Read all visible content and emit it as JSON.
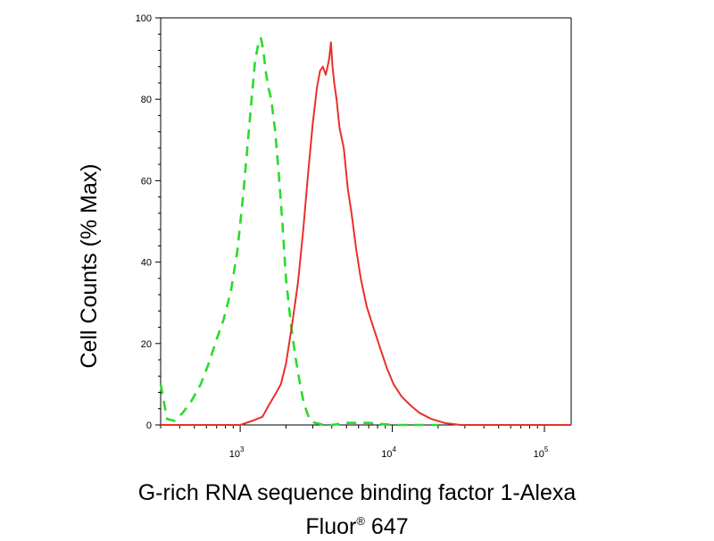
{
  "chart_data": {
    "type": "line",
    "xlabel_line1": "G-rich RNA sequence binding factor 1-Alexa",
    "xlabel_line2_base": "Fluor",
    "xlabel_line2_sup": "®",
    "xlabel_line2_rest": " 647",
    "ylabel": "Cell Counts (% Max)",
    "x_scale": "log",
    "xlim": [
      300,
      150000
    ],
    "ylim": [
      0,
      100
    ],
    "ytick_labels": [
      "0",
      "20",
      "40",
      "60",
      "80",
      "100"
    ],
    "ytick_values": [
      0,
      20,
      40,
      60,
      80,
      100
    ],
    "xtick_values": [
      1000,
      10000,
      100000
    ],
    "xtick_labels": [
      {
        "base": "10",
        "exp": "3"
      },
      {
        "base": "10",
        "exp": "4"
      },
      {
        "base": "10",
        "exp": "5"
      }
    ],
    "grid": false,
    "series": [
      {
        "color": "#2adb2a",
        "style": "dashed",
        "x": [
          300,
          330,
          370,
          420,
          480,
          550,
          620,
          700,
          780,
          870,
          960,
          1050,
          1150,
          1250,
          1320,
          1370,
          1420,
          1470,
          1530,
          1600,
          1700,
          1800,
          1900,
          2000,
          2150,
          2300,
          2450,
          2600,
          2750,
          2900,
          3100,
          3300,
          3600,
          4000,
          5000,
          7000,
          10000,
          20000
        ],
        "y": [
          10,
          1.5,
          1,
          3,
          6,
          10,
          15,
          21,
          26,
          33,
          43,
          57,
          74,
          89,
          94,
          95,
          92,
          87,
          83,
          80,
          72,
          61,
          49,
          36,
          25,
          17,
          11,
          6,
          3,
          1,
          0.5,
          0.3,
          0,
          0,
          0.5,
          0.5,
          0,
          0
        ]
      },
      {
        "color": "#e8302a",
        "style": "solid",
        "x": [
          300,
          1000,
          1200,
          1400,
          1550,
          1700,
          1850,
          2000,
          2200,
          2400,
          2600,
          2800,
          3000,
          3200,
          3350,
          3500,
          3650,
          3750,
          3850,
          3950,
          4050,
          4150,
          4300,
          4500,
          4800,
          5100,
          5400,
          5800,
          6200,
          6800,
          7500,
          8300,
          9200,
          10200,
          11500,
          13000,
          15000,
          18000,
          22000,
          28000,
          40000,
          100000,
          150000
        ],
        "y": [
          0,
          0,
          1,
          2,
          5,
          7.5,
          10,
          15,
          25,
          35,
          48,
          62,
          74,
          83,
          87,
          88,
          86,
          88,
          90,
          94,
          88,
          84,
          80,
          73,
          68,
          58,
          52,
          43,
          36,
          29,
          24,
          19,
          14,
          10,
          7,
          5,
          3,
          1.5,
          0.5,
          0,
          0,
          0,
          0
        ]
      }
    ]
  }
}
